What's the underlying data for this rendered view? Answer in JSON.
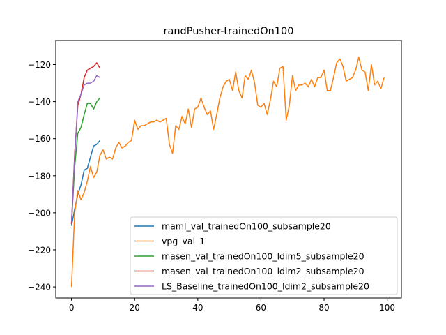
{
  "chart_data": {
    "type": "line",
    "title": "randPusher-trainedOn100",
    "xlabel": "",
    "ylabel": "",
    "xlim": [
      -5,
      104.5
    ],
    "ylim": [
      -246,
      -107
    ],
    "xticks": [
      0,
      20,
      40,
      60,
      80,
      100
    ],
    "yticks": [
      -240,
      -220,
      -200,
      -180,
      -160,
      -140,
      -120
    ],
    "grid": false,
    "legend_position": "lower-right",
    "series": [
      {
        "name": "maml_val_trainedOn100_subsample20",
        "color": "#1f77b4",
        "x": [
          0,
          1,
          2,
          3,
          4,
          5,
          6,
          7,
          8,
          9
        ],
        "y": [
          -207,
          -198,
          -190,
          -185,
          -177,
          -176,
          -170,
          -164,
          -163,
          -161
        ]
      },
      {
        "name": "vpg_val_1",
        "color": "#ff7f0e",
        "x": [
          0,
          1,
          2,
          3,
          4,
          5,
          6,
          7,
          8,
          9,
          10,
          11,
          12,
          13,
          14,
          15,
          16,
          17,
          18,
          19,
          20,
          21,
          22,
          23,
          24,
          25,
          26,
          27,
          28,
          29,
          30,
          31,
          32,
          33,
          34,
          35,
          36,
          37,
          38,
          39,
          40,
          41,
          42,
          43,
          44,
          45,
          46,
          47,
          48,
          49,
          50,
          51,
          52,
          53,
          54,
          55,
          56,
          57,
          58,
          59,
          60,
          61,
          62,
          63,
          64,
          65,
          66,
          67,
          68,
          69,
          70,
          71,
          72,
          73,
          74,
          75,
          76,
          77,
          78,
          79,
          80,
          81,
          82,
          83,
          84,
          85,
          86,
          87,
          88,
          89,
          90,
          91,
          92,
          93,
          94,
          95,
          96,
          97,
          98,
          99
        ],
        "y": [
          -240,
          -200,
          -188,
          -193,
          -189,
          -183,
          -175,
          -181,
          -178,
          -169,
          -166,
          -171,
          -170,
          -171,
          -165,
          -162,
          -165,
          -164,
          -162,
          -161,
          -150,
          -155,
          -153,
          -153,
          -152,
          -151,
          -151,
          -150,
          -151,
          -150,
          -149,
          -163,
          -168,
          -153,
          -155,
          -148,
          -152,
          -144,
          -154,
          -144,
          -143,
          -138,
          -143,
          -147,
          -145,
          -155,
          -147,
          -138,
          -132,
          -129,
          -128,
          -134,
          -124,
          -134,
          -138,
          -126,
          -128,
          -123,
          -130,
          -142,
          -143,
          -141,
          -147,
          -139,
          -129,
          -132,
          -122,
          -121,
          -150,
          -142,
          -126,
          -134,
          -131,
          -131,
          -130,
          -132,
          -128,
          -132,
          -127,
          -127,
          -123,
          -134,
          -134,
          -127,
          -119,
          -117,
          -121,
          -129,
          -128,
          -127,
          -123,
          -116,
          -123,
          -124,
          -134,
          -120,
          -131,
          -129,
          -133,
          -127
        ]
      },
      {
        "name": "masen_val_trainedOn100_ldim5_subsample20",
        "color": "#2ca02c",
        "x": [
          0,
          1,
          2,
          3,
          4,
          5,
          6,
          7,
          8,
          9
        ],
        "y": [
          -206,
          -175,
          -157,
          -154,
          -147,
          -141,
          -141,
          -144,
          -140,
          -138
        ]
      },
      {
        "name": "masen_val_trainedOn100_ldim2_subsample20",
        "color": "#d62728",
        "x": [
          0,
          1,
          2,
          3,
          4,
          5,
          6,
          7,
          8,
          9
        ],
        "y": [
          -206,
          -168,
          -142,
          -136,
          -127,
          -123,
          -122,
          -121,
          -119,
          -122
        ]
      },
      {
        "name": "LS_Baseline_trainedOn100_ldim2_subsample20",
        "color": "#9467bd",
        "x": [
          0,
          1,
          2,
          3,
          4,
          5,
          6,
          7,
          8,
          9
        ],
        "y": [
          -205,
          -170,
          -140,
          -136,
          -131,
          -130,
          -130,
          -129,
          -126,
          -127
        ]
      }
    ]
  }
}
